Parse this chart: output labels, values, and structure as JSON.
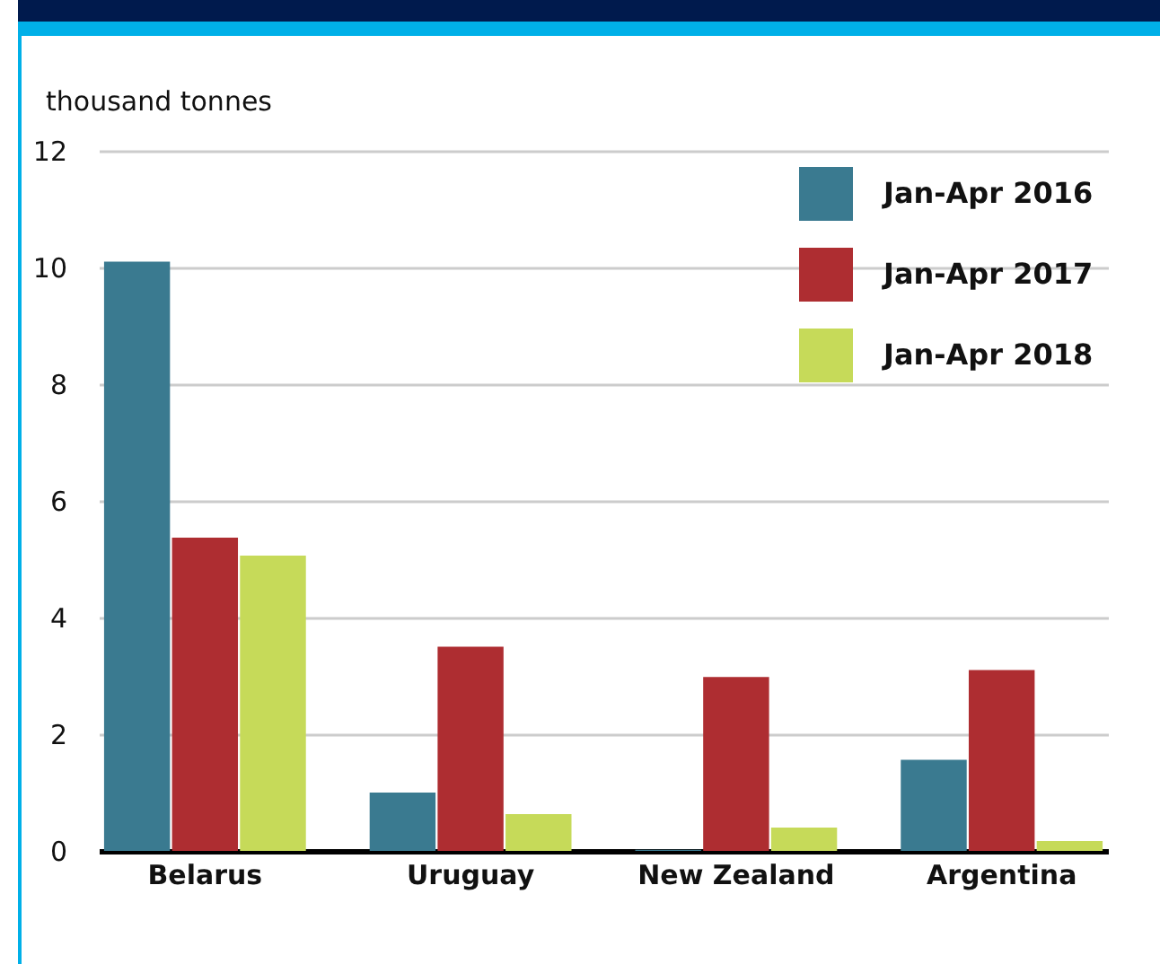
{
  "chart_data": {
    "type": "bar",
    "ylabel": "thousand tonnes",
    "categories": [
      "Belarus",
      "Uruguay",
      "New Zealand",
      "Argentina"
    ],
    "series": [
      {
        "name": "Jan-Apr 2016",
        "color": "#3a7a90",
        "values": [
          10.1,
          1.0,
          0.02,
          1.56
        ]
      },
      {
        "name": "Jan-Apr 2017",
        "color": "#ae2d31",
        "values": [
          5.37,
          3.5,
          2.98,
          3.1
        ]
      },
      {
        "name": "Jan-Apr 2018",
        "color": "#c6da59",
        "values": [
          5.06,
          0.63,
          0.4,
          0.17
        ]
      }
    ],
    "ylim": [
      0,
      12
    ],
    "yticks": [
      0,
      2,
      4,
      6,
      8,
      10,
      12
    ],
    "grid": "y",
    "legend": "top right"
  }
}
